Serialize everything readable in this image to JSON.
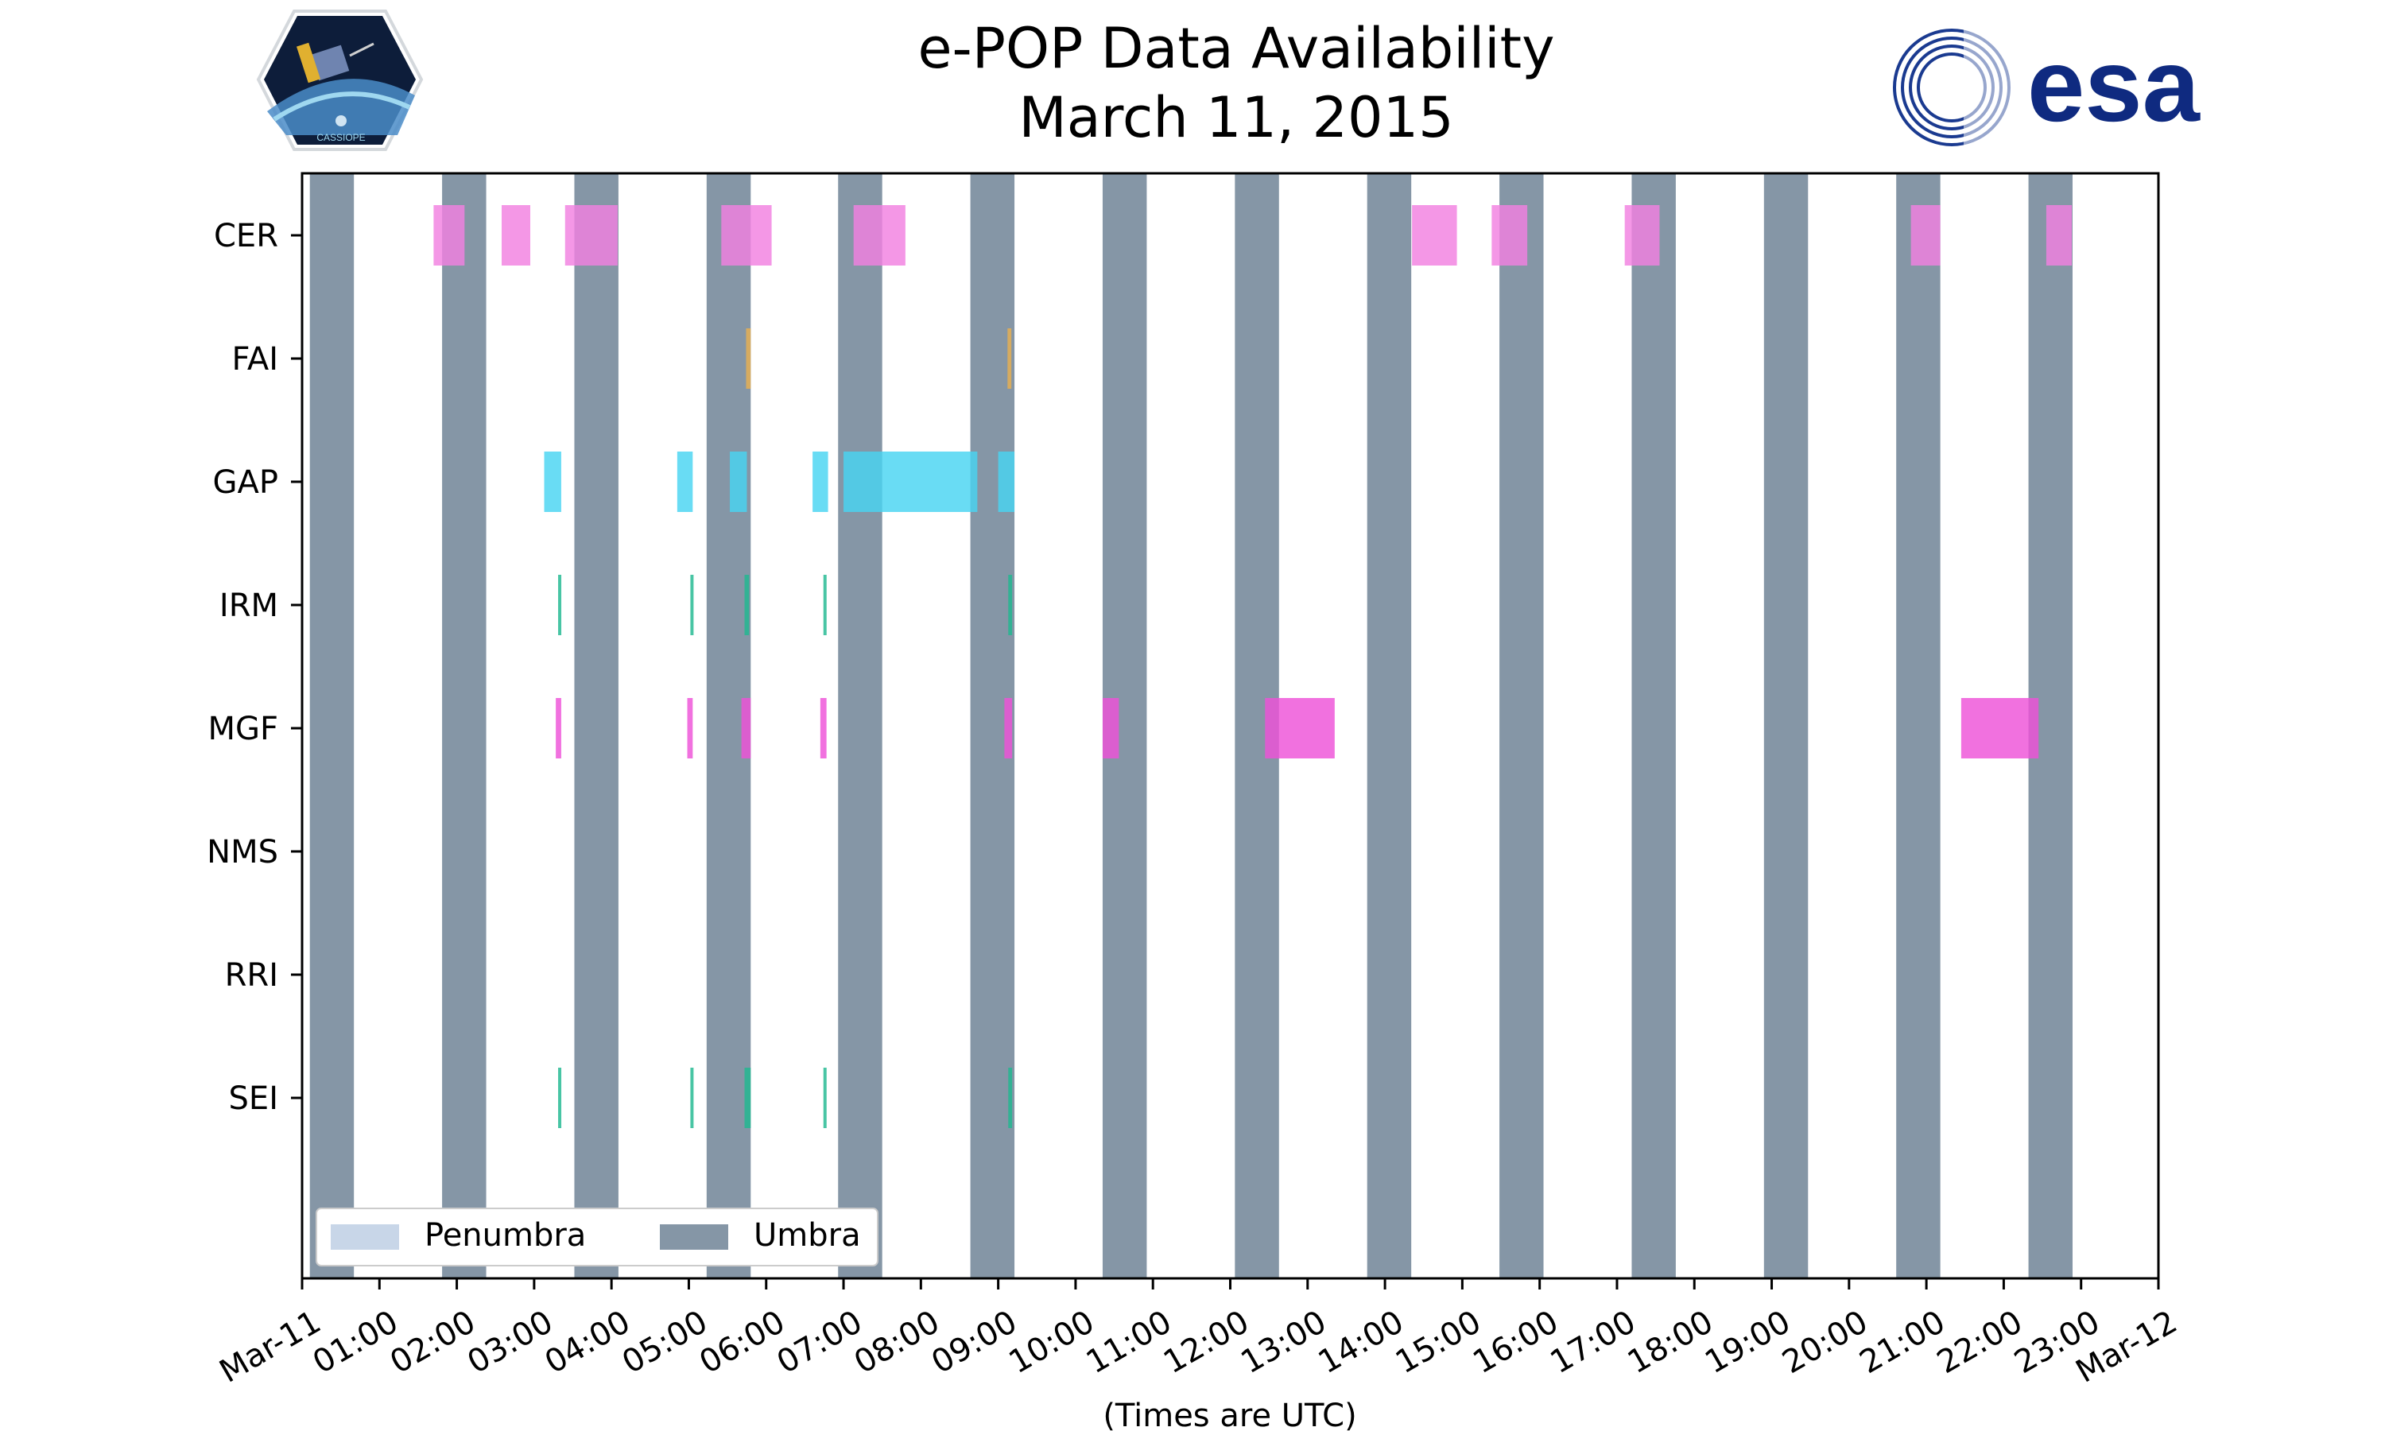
{
  "chart_data": {
    "type": "timeline",
    "title": "e-POP Data Availability",
    "subtitle": "March 11, 2015",
    "xlabel": "(Times are UTC)",
    "x_range_hours": [
      0,
      24
    ],
    "x_tick_labels": [
      "Mar-11",
      "01:00",
      "02:00",
      "03:00",
      "04:00",
      "05:00",
      "06:00",
      "07:00",
      "08:00",
      "09:00",
      "10:00",
      "11:00",
      "12:00",
      "13:00",
      "14:00",
      "15:00",
      "16:00",
      "17:00",
      "18:00",
      "19:00",
      "20:00",
      "21:00",
      "22:00",
      "23:00",
      "Mar-12"
    ],
    "instruments": [
      "CER",
      "FAI",
      "GAP",
      "IRM",
      "MGF",
      "NMS",
      "RRI",
      "SEI"
    ],
    "legend": {
      "position": "lower-left",
      "entries": [
        {
          "label": "Penumbra",
          "color": "#c8d6e8"
        },
        {
          "label": "Umbra",
          "color": "#8596a6"
        }
      ]
    },
    "umbra_hours": [
      [
        0.1,
        0.67
      ],
      [
        1.81,
        2.38
      ],
      [
        3.52,
        4.09
      ],
      [
        5.23,
        5.8
      ],
      [
        6.93,
        7.5
      ],
      [
        8.64,
        9.21
      ],
      [
        10.35,
        10.92
      ],
      [
        12.06,
        12.63
      ],
      [
        13.77,
        14.34
      ],
      [
        15.48,
        16.05
      ],
      [
        17.19,
        17.76
      ],
      [
        18.9,
        19.47
      ],
      [
        20.61,
        21.18
      ],
      [
        22.32,
        22.89
      ]
    ],
    "series": [
      {
        "name": "CER",
        "color": "#f280e0",
        "intervals": [
          [
            1.7,
            2.1
          ],
          [
            2.58,
            2.95
          ],
          [
            3.4,
            4.08
          ],
          [
            5.42,
            6.07
          ],
          [
            7.13,
            7.8
          ],
          [
            14.35,
            14.93
          ],
          [
            15.38,
            15.84
          ],
          [
            17.1,
            17.55
          ],
          [
            20.8,
            21.18
          ],
          [
            22.55,
            22.88
          ]
        ]
      },
      {
        "name": "FAI",
        "color": "#e8b050",
        "intervals": [
          [
            5.74,
            5.8
          ],
          [
            9.12,
            9.17
          ]
        ]
      },
      {
        "name": "GAP",
        "color": "#48d4f2",
        "intervals": [
          [
            3.13,
            3.35
          ],
          [
            4.85,
            5.05
          ],
          [
            5.53,
            5.75
          ],
          [
            6.6,
            6.8
          ],
          [
            7.0,
            8.73
          ],
          [
            9.0,
            9.21
          ]
        ]
      },
      {
        "name": "IRM",
        "color": "#20b890",
        "intervals": [
          [
            3.31,
            3.35
          ],
          [
            5.02,
            5.06
          ],
          [
            5.72,
            5.78
          ],
          [
            6.74,
            6.78
          ],
          [
            9.13,
            9.18
          ]
        ]
      },
      {
        "name": "MGF",
        "color": "#ee52d8",
        "intervals": [
          [
            3.28,
            3.35
          ],
          [
            4.98,
            5.05
          ],
          [
            5.68,
            5.8
          ],
          [
            6.7,
            6.78
          ],
          [
            9.08,
            9.18
          ],
          [
            10.35,
            10.56
          ],
          [
            12.45,
            13.35
          ],
          [
            21.45,
            22.45
          ]
        ]
      },
      {
        "name": "NMS",
        "color": "#888888",
        "intervals": []
      },
      {
        "name": "RRI",
        "color": "#888888",
        "intervals": []
      },
      {
        "name": "SEI",
        "color": "#20b890",
        "intervals": [
          [
            3.31,
            3.35
          ],
          [
            5.02,
            5.06
          ],
          [
            5.72,
            5.8
          ],
          [
            6.74,
            6.78
          ],
          [
            9.13,
            9.18
          ]
        ]
      }
    ]
  },
  "logos": {
    "left": {
      "name": "CASSIOPE",
      "text": "CASSIOPE"
    },
    "right": {
      "name": "esa",
      "text": "esa",
      "color": "#0f2a80"
    }
  }
}
